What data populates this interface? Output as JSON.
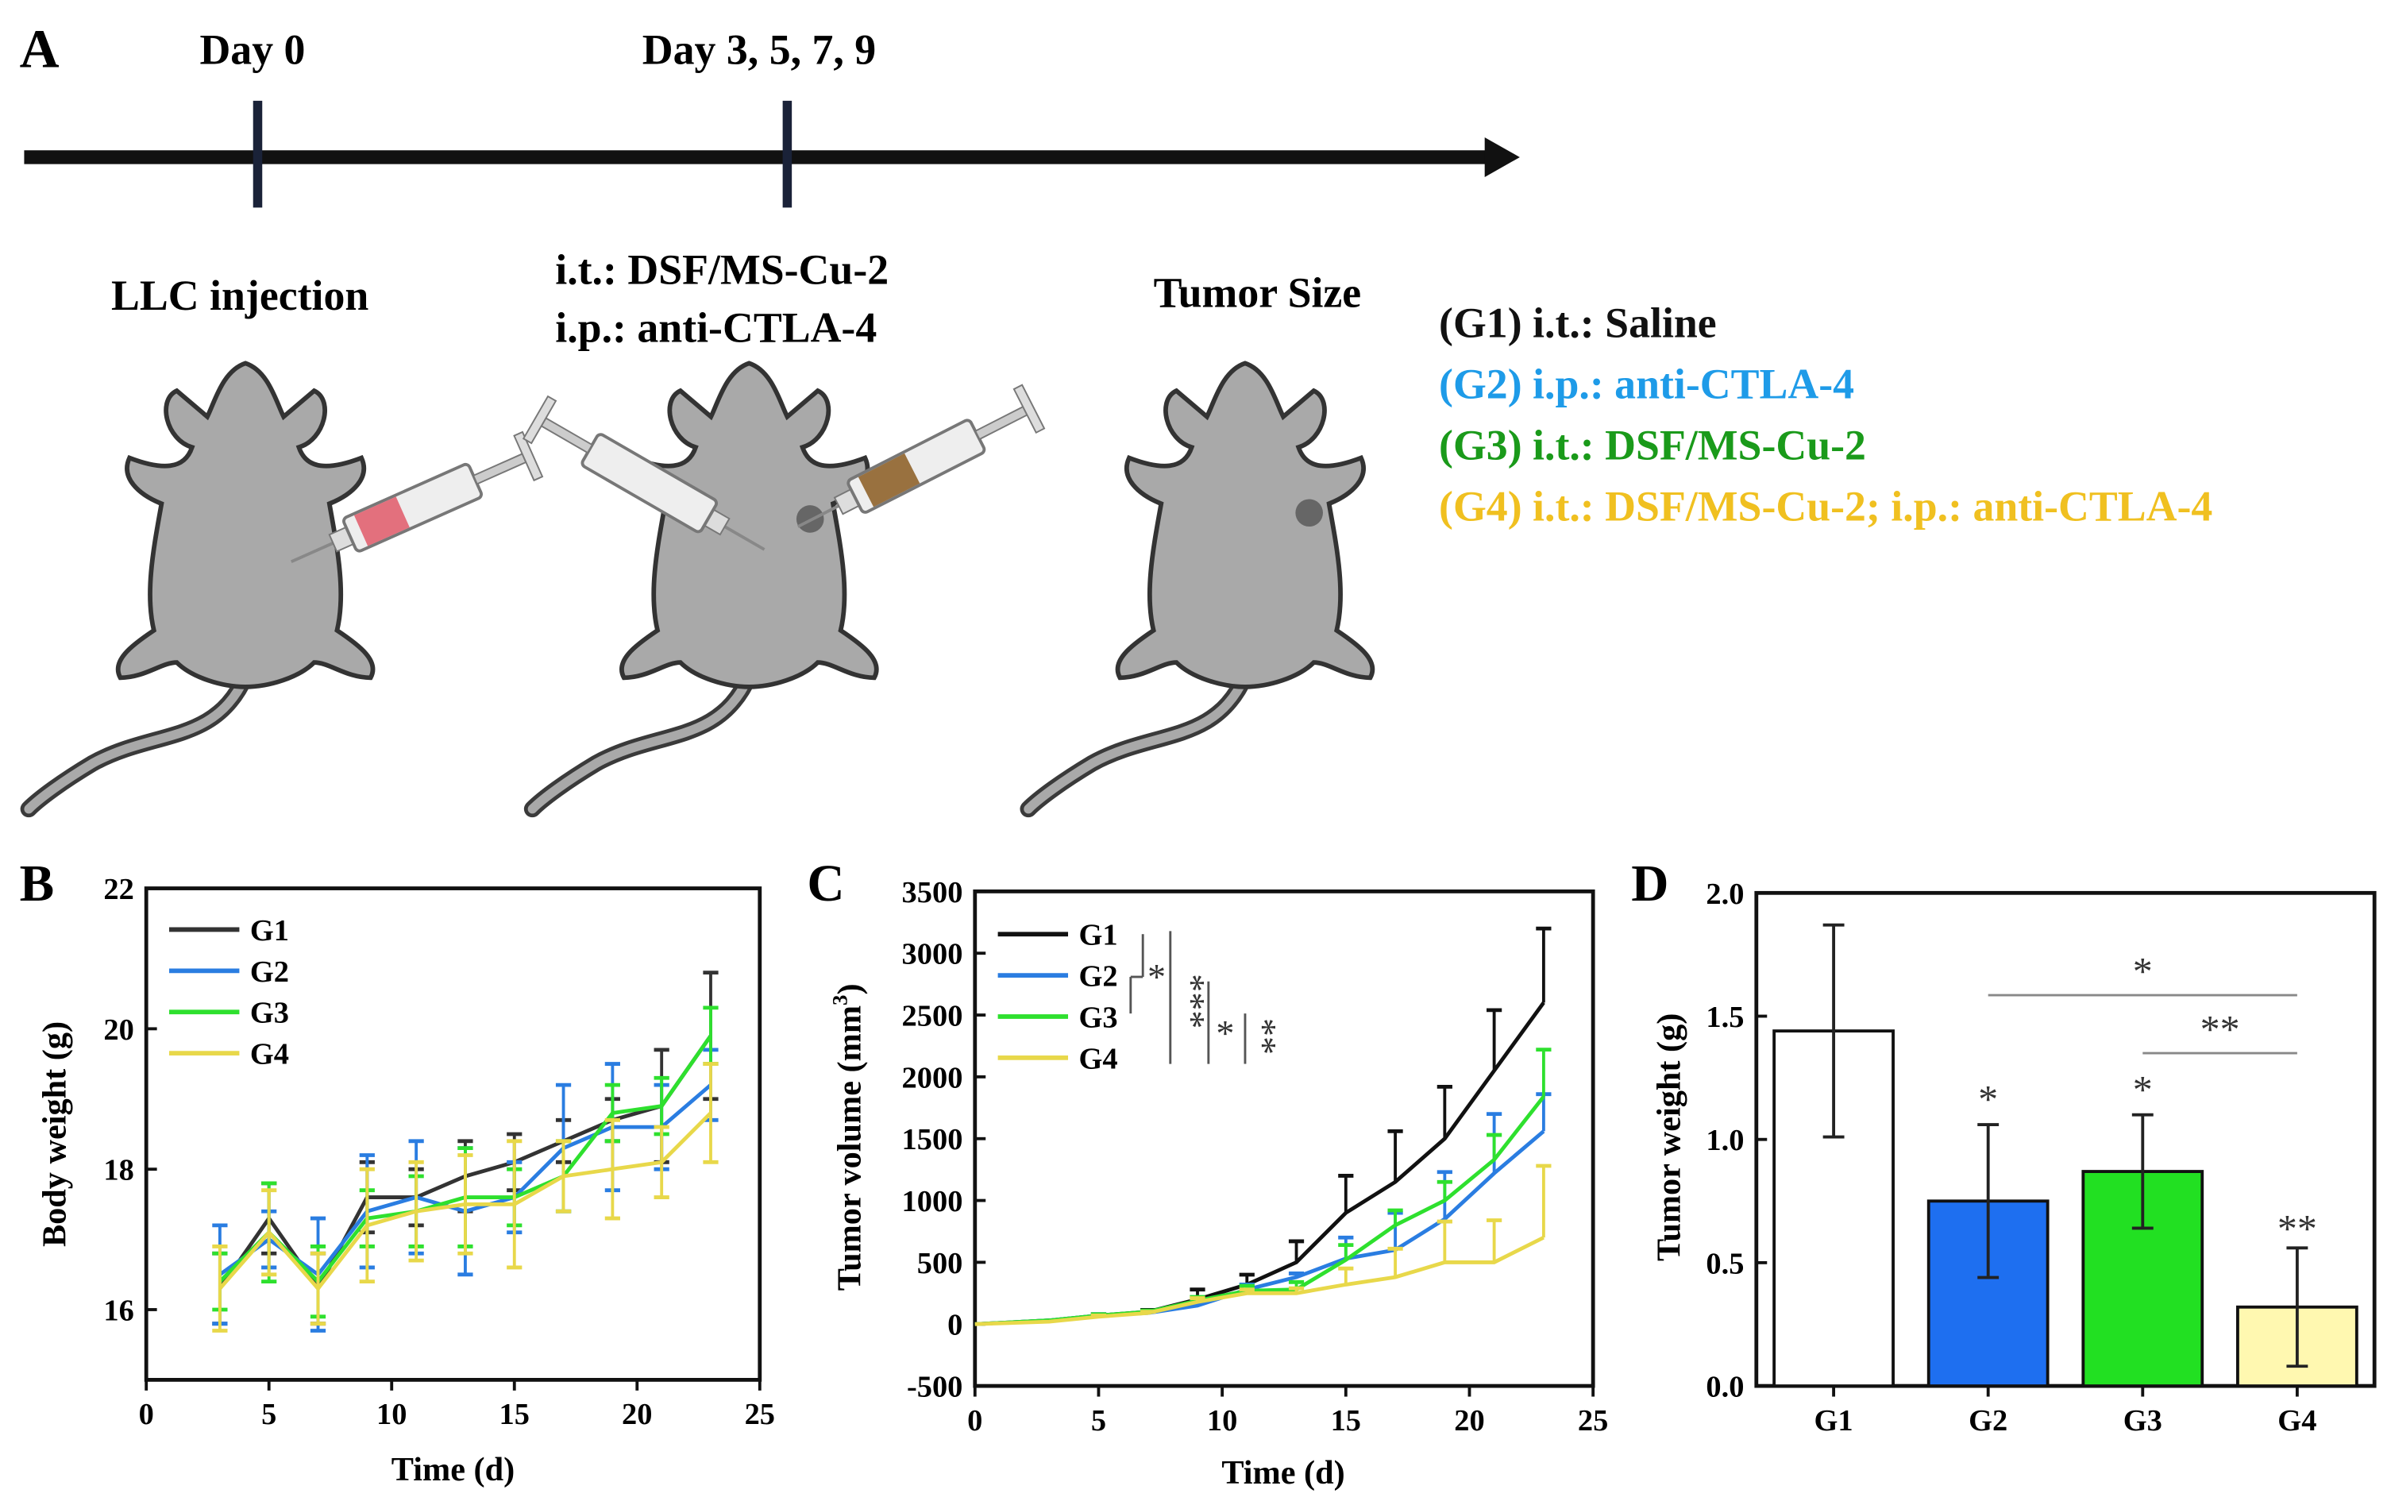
{
  "panel_a": {
    "letter": "A",
    "timeline": {
      "day0": "Day 0",
      "day_later": "Day 3, 5, 7, 9"
    },
    "step1": "LLC injection",
    "step2_line1": "i.t.: DSF/MS-Cu-2",
    "step2_line2": "i.p.: anti-CTLA-4",
    "step3": "Tumor Size",
    "groups": [
      {
        "label": "(G1) i.t.: Saline",
        "color": "#111111"
      },
      {
        "label": "(G2) i.p.: anti-CTLA-4",
        "color": "#1e9be8"
      },
      {
        "label": "(G3) i.t.: DSF/MS-Cu-2",
        "color": "#1a9a1a"
      },
      {
        "label": "(G4) i.t.: DSF/MS-Cu-2; i.p.: anti-CTLA-4",
        "color": "#f0c020"
      }
    ]
  },
  "chart_data": [
    {
      "panel": "B",
      "type": "line",
      "xlabel": "Time (d)",
      "ylabel": "Body weight (g)",
      "xlim": [
        0,
        25
      ],
      "ylim": [
        15,
        22
      ],
      "xticks": [
        "0",
        "5",
        "10",
        "15",
        "20",
        "25"
      ],
      "yticks": [
        "16",
        "18",
        "20",
        "22"
      ],
      "legend": "top-left",
      "x": [
        3,
        5,
        7,
        9,
        11,
        13,
        15,
        17,
        19,
        21,
        23
      ],
      "series": [
        {
          "name": "G1",
          "color": "#333333",
          "values": [
            16.3,
            17.3,
            16.3,
            17.6,
            17.6,
            17.9,
            18.1,
            18.4,
            18.7,
            18.9,
            19.9
          ],
          "err": [
            0.5,
            0.5,
            0.5,
            0.5,
            0.4,
            0.5,
            0.4,
            0.3,
            0.3,
            0.8,
            0.9
          ]
        },
        {
          "name": "G2",
          "color": "#2a7de1",
          "values": [
            16.5,
            17.0,
            16.5,
            17.4,
            17.6,
            17.4,
            17.6,
            18.3,
            18.6,
            18.6,
            19.2
          ],
          "err": [
            0.7,
            0.4,
            0.8,
            0.8,
            0.8,
            0.9,
            0.5,
            0.9,
            0.9,
            0.6,
            0.5
          ]
        },
        {
          "name": "G3",
          "color": "#2ee02e",
          "values": [
            16.4,
            17.1,
            16.4,
            17.3,
            17.4,
            17.6,
            17.6,
            17.9,
            18.8,
            18.9,
            19.9
          ],
          "err": [
            0.4,
            0.7,
            0.5,
            0.4,
            0.5,
            0.7,
            0.4,
            0.5,
            0.4,
            0.4,
            0.4
          ]
        },
        {
          "name": "G4",
          "color": "#e8d84a",
          "values": [
            16.3,
            17.1,
            16.3,
            17.2,
            17.4,
            17.5,
            17.5,
            17.9,
            18.0,
            18.1,
            18.8
          ],
          "err": [
            0.6,
            0.6,
            0.5,
            0.8,
            0.7,
            0.7,
            0.9,
            0.5,
            0.7,
            0.5,
            0.7
          ]
        }
      ]
    },
    {
      "panel": "C",
      "type": "line",
      "xlabel": "Time (d)",
      "ylabel": "Tumor volume (mm",
      "ylabel_sup": "3",
      "ylabel_end": ")",
      "xlim": [
        0,
        25
      ],
      "ylim": [
        -500,
        3500
      ],
      "xticks": [
        "0",
        "5",
        "10",
        "15",
        "20",
        "25"
      ],
      "yticks": [
        "-500",
        "0",
        "500",
        "1000",
        "1500",
        "2000",
        "2500",
        "3000",
        "3500"
      ],
      "legend": "top-left",
      "x": [
        0,
        3,
        5,
        7,
        9,
        11,
        13,
        15,
        17,
        19,
        21,
        23
      ],
      "series": [
        {
          "name": "G1",
          "color": "#111111",
          "values": [
            0,
            30,
            70,
            100,
            200,
            320,
            500,
            900,
            1150,
            1500,
            2050,
            2600
          ],
          "err": [
            0,
            0,
            10,
            15,
            80,
            80,
            170,
            300,
            410,
            420,
            490,
            600
          ]
        },
        {
          "name": "G2",
          "color": "#2a7de1",
          "values": [
            0,
            30,
            70,
            90,
            150,
            280,
            380,
            530,
            600,
            850,
            1220,
            1560
          ],
          "err": [
            0,
            0,
            10,
            10,
            30,
            40,
            30,
            170,
            300,
            380,
            480,
            300
          ]
        },
        {
          "name": "G3",
          "color": "#2ee02e",
          "values": [
            0,
            30,
            70,
            100,
            190,
            270,
            280,
            520,
            800,
            1000,
            1330,
            1840
          ],
          "err": [
            0,
            0,
            10,
            10,
            30,
            40,
            60,
            120,
            120,
            150,
            200,
            380
          ]
        },
        {
          "name": "G4",
          "color": "#e8d84a",
          "values": [
            0,
            20,
            60,
            90,
            180,
            250,
            250,
            320,
            380,
            500,
            500,
            700
          ],
          "err": [
            0,
            0,
            10,
            10,
            30,
            30,
            40,
            130,
            230,
            330,
            340,
            580
          ]
        }
      ],
      "significance": [
        "*",
        "***",
        "*",
        "**"
      ]
    },
    {
      "panel": "D",
      "type": "bar",
      "ylabel": "Tumor weight (g)",
      "ylim": [
        0,
        2.0
      ],
      "yticks": [
        "0.0",
        "0.5",
        "1.0",
        "1.5",
        "2.0"
      ],
      "categories": [
        "G1",
        "G2",
        "G3",
        "G4"
      ],
      "values": [
        1.44,
        0.75,
        0.87,
        0.32
      ],
      "err": [
        0.43,
        0.31,
        0.23,
        0.24
      ],
      "colors": [
        "#ffffff",
        "#1e6ff0",
        "#22e022",
        "#fff8b0"
      ],
      "bar_stars": [
        "",
        "*",
        "*",
        "**"
      ],
      "comparisons": [
        {
          "from": "G2",
          "to": "G4",
          "stars": "*"
        },
        {
          "from": "G3",
          "to": "G4",
          "stars": "**"
        }
      ]
    }
  ]
}
